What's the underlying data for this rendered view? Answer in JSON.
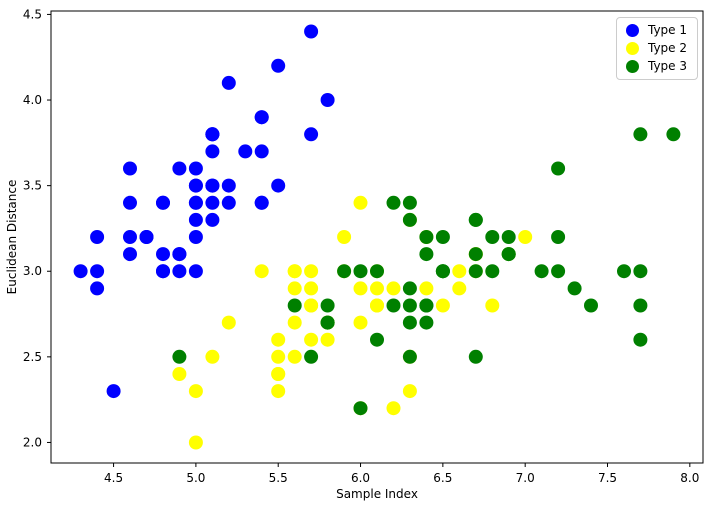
{
  "chart_data": {
    "type": "scatter",
    "title": "",
    "xlabel": "Sample Index",
    "ylabel": "Euclidean Distance",
    "xlim": [
      4.12,
      8.08
    ],
    "ylim": [
      1.88,
      4.52
    ],
    "xticks": [
      "4.5",
      "5.0",
      "5.5",
      "6.0",
      "6.5",
      "7.0",
      "7.5",
      "8.0"
    ],
    "yticks": [
      "2.0",
      "2.5",
      "3.0",
      "3.5",
      "4.0",
      "4.5"
    ],
    "grid": false,
    "legend_position": "upper right",
    "legend_border_color": "#cccccc",
    "marker_diameter_px": 14,
    "axis_color": "#000000",
    "background_color": "#ffffff",
    "series": [
      {
        "name": "Type 1",
        "color": "#0000ff",
        "points": [
          [
            5.1,
            3.5
          ],
          [
            4.9,
            3.0
          ],
          [
            4.7,
            3.2
          ],
          [
            4.6,
            3.1
          ],
          [
            5.0,
            3.6
          ],
          [
            5.4,
            3.9
          ],
          [
            4.6,
            3.4
          ],
          [
            5.0,
            3.4
          ],
          [
            4.4,
            2.9
          ],
          [
            4.9,
            3.1
          ],
          [
            5.4,
            3.7
          ],
          [
            4.8,
            3.4
          ],
          [
            4.8,
            3.0
          ],
          [
            4.3,
            3.0
          ],
          [
            5.8,
            4.0
          ],
          [
            5.7,
            4.4
          ],
          [
            5.4,
            3.9
          ],
          [
            5.1,
            3.5
          ],
          [
            5.7,
            3.8
          ],
          [
            5.1,
            3.8
          ],
          [
            5.4,
            3.4
          ],
          [
            5.1,
            3.7
          ],
          [
            4.6,
            3.6
          ],
          [
            5.1,
            3.3
          ],
          [
            4.8,
            3.4
          ],
          [
            5.0,
            3.0
          ],
          [
            5.0,
            3.4
          ],
          [
            5.2,
            3.5
          ],
          [
            5.2,
            3.4
          ],
          [
            4.7,
            3.2
          ],
          [
            4.8,
            3.1
          ],
          [
            5.4,
            3.4
          ],
          [
            5.2,
            4.1
          ],
          [
            5.5,
            4.2
          ],
          [
            4.9,
            3.1
          ],
          [
            5.0,
            3.2
          ],
          [
            5.5,
            3.5
          ],
          [
            4.9,
            3.6
          ],
          [
            4.4,
            3.0
          ],
          [
            5.1,
            3.4
          ],
          [
            5.0,
            3.5
          ],
          [
            4.5,
            2.3
          ],
          [
            4.4,
            3.2
          ],
          [
            5.0,
            3.5
          ],
          [
            5.1,
            3.8
          ],
          [
            4.8,
            3.0
          ],
          [
            5.1,
            3.8
          ],
          [
            4.6,
            3.2
          ],
          [
            5.3,
            3.7
          ],
          [
            5.0,
            3.3
          ]
        ]
      },
      {
        "name": "Type 2",
        "color": "#ffff00",
        "points": [
          [
            7.0,
            3.2
          ],
          [
            6.4,
            3.2
          ],
          [
            6.9,
            3.1
          ],
          [
            5.5,
            2.3
          ],
          [
            6.5,
            2.8
          ],
          [
            5.7,
            2.8
          ],
          [
            6.3,
            3.3
          ],
          [
            4.9,
            2.4
          ],
          [
            6.6,
            2.9
          ],
          [
            5.2,
            2.7
          ],
          [
            5.0,
            2.0
          ],
          [
            5.9,
            3.0
          ],
          [
            6.0,
            2.2
          ],
          [
            6.1,
            2.9
          ],
          [
            5.6,
            2.9
          ],
          [
            6.7,
            3.1
          ],
          [
            5.6,
            3.0
          ],
          [
            5.8,
            2.7
          ],
          [
            6.2,
            2.2
          ],
          [
            5.6,
            2.5
          ],
          [
            5.9,
            3.2
          ],
          [
            6.1,
            2.8
          ],
          [
            6.3,
            2.5
          ],
          [
            6.1,
            2.8
          ],
          [
            6.4,
            2.9
          ],
          [
            6.6,
            3.0
          ],
          [
            6.8,
            2.8
          ],
          [
            6.7,
            3.0
          ],
          [
            6.0,
            2.9
          ],
          [
            5.7,
            2.6
          ],
          [
            5.5,
            2.4
          ],
          [
            5.5,
            2.4
          ],
          [
            5.8,
            2.7
          ],
          [
            6.0,
            2.7
          ],
          [
            5.4,
            3.0
          ],
          [
            6.0,
            3.4
          ],
          [
            6.7,
            3.1
          ],
          [
            6.3,
            2.3
          ],
          [
            5.6,
            3.0
          ],
          [
            5.5,
            2.5
          ],
          [
            5.5,
            2.6
          ],
          [
            6.1,
            3.0
          ],
          [
            5.8,
            2.6
          ],
          [
            5.0,
            2.3
          ],
          [
            5.6,
            2.7
          ],
          [
            5.7,
            3.0
          ],
          [
            5.7,
            2.9
          ],
          [
            6.2,
            2.9
          ],
          [
            5.1,
            2.5
          ],
          [
            5.7,
            2.8
          ]
        ]
      },
      {
        "name": "Type 3",
        "color": "#008000",
        "points": [
          [
            6.3,
            3.3
          ],
          [
            5.8,
            2.7
          ],
          [
            7.1,
            3.0
          ],
          [
            6.3,
            2.9
          ],
          [
            6.5,
            3.0
          ],
          [
            7.6,
            3.0
          ],
          [
            4.9,
            2.5
          ],
          [
            7.3,
            2.9
          ],
          [
            6.7,
            2.5
          ],
          [
            7.2,
            3.6
          ],
          [
            6.5,
            3.2
          ],
          [
            6.4,
            2.7
          ],
          [
            6.8,
            3.0
          ],
          [
            5.7,
            2.5
          ],
          [
            5.8,
            2.8
          ],
          [
            6.4,
            3.2
          ],
          [
            6.5,
            3.0
          ],
          [
            7.7,
            3.8
          ],
          [
            7.7,
            2.6
          ],
          [
            6.0,
            2.2
          ],
          [
            6.9,
            3.2
          ],
          [
            5.6,
            2.8
          ],
          [
            7.7,
            2.8
          ],
          [
            6.3,
            2.7
          ],
          [
            6.7,
            3.3
          ],
          [
            7.2,
            3.2
          ],
          [
            6.2,
            2.8
          ],
          [
            6.1,
            3.0
          ],
          [
            6.4,
            2.8
          ],
          [
            7.2,
            3.0
          ],
          [
            7.4,
            2.8
          ],
          [
            7.9,
            3.8
          ],
          [
            6.4,
            2.8
          ],
          [
            6.3,
            2.8
          ],
          [
            6.1,
            2.6
          ],
          [
            7.7,
            3.0
          ],
          [
            6.3,
            3.4
          ],
          [
            6.4,
            3.1
          ],
          [
            6.0,
            3.0
          ],
          [
            6.9,
            3.1
          ],
          [
            6.7,
            3.1
          ],
          [
            6.9,
            3.1
          ],
          [
            5.8,
            2.7
          ],
          [
            6.8,
            3.2
          ],
          [
            6.7,
            3.3
          ],
          [
            6.7,
            3.0
          ],
          [
            6.3,
            2.5
          ],
          [
            6.5,
            3.0
          ],
          [
            6.2,
            3.4
          ],
          [
            5.9,
            3.0
          ]
        ]
      }
    ]
  }
}
